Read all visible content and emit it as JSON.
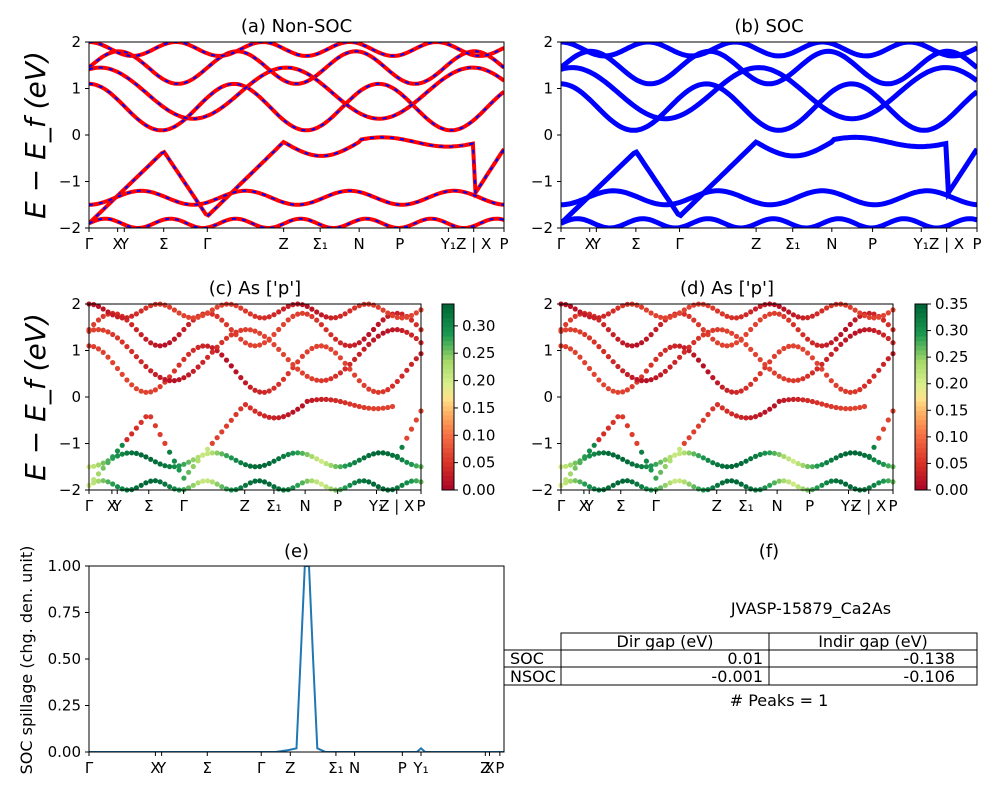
{
  "panels": {
    "a": {
      "title": "(a) Non-SOC"
    },
    "b": {
      "title": "(b) SOC"
    },
    "c": {
      "title": "(c)  As ['p']"
    },
    "d": {
      "title": "(d) As ['p']"
    },
    "e": {
      "title": "(e)"
    },
    "f": {
      "title": "(f)"
    }
  },
  "band_ylabel": "E − E_f (eV)",
  "spillage_ylabel": "SOC spillage (chg. den. unit)",
  "band_yticks": [
    "2",
    "1",
    "0",
    "−1",
    "−2"
  ],
  "band_xticks": [
    "Γ",
    "X",
    "Y",
    "Σ",
    "Γ",
    "Z",
    "Σ₁",
    "N",
    "P",
    "Y₁",
    "Z | X",
    "P"
  ],
  "spill_xticks": [
    "Γ",
    "X",
    "Y",
    "Σ",
    "Γ",
    "Z",
    "Σ₁",
    "N",
    "P",
    "Y₁",
    "Z",
    "X",
    "P"
  ],
  "colorbar_c": {
    "ticks": [
      "0.30",
      "0.25",
      "0.20",
      "0.15",
      "0.10",
      "0.05",
      "0.00"
    ],
    "max": 0.34
  },
  "colorbar_d": {
    "ticks": [
      "0.35",
      "0.30",
      "0.25",
      "0.20",
      "0.15",
      "0.10",
      "0.05",
      "0.00"
    ],
    "max": 0.35
  },
  "colors": {
    "nonsoc_line": "#ff0000",
    "nonsoc_dash": "#0000ff",
    "soc_line": "#0000ff",
    "spillage": "#1f77b4"
  },
  "table": {
    "material": "JVASP-15879_Ca2As",
    "columns": [
      "Dir gap (eV)",
      "Indir gap (eV)"
    ],
    "rows": [
      {
        "label": "SOC",
        "dir": "0.01",
        "indir": "-0.138"
      },
      {
        "label": "NSOC",
        "dir": "-0.001",
        "indir": "-0.106"
      }
    ],
    "peaks": "# Peaks = 1"
  },
  "chart_data": [
    {
      "type": "line",
      "title": "(a) Non-SOC",
      "ylabel": "E − E_f (eV)",
      "ylim": [
        -2,
        2
      ],
      "x_ticks": [
        "Γ",
        "X",
        "Y",
        "Σ",
        "Γ",
        "Z",
        "Σ₁",
        "N",
        "P",
        "Y₁",
        "Z | X",
        "P"
      ],
      "series_note": "electronic band structure, red lines with blue dashes"
    },
    {
      "type": "line",
      "title": "(b) SOC",
      "ylim": [
        -2,
        2
      ],
      "x_ticks": [
        "Γ",
        "X",
        "Y",
        "Σ",
        "Γ",
        "Z",
        "Σ₁",
        "N",
        "P",
        "Y₁",
        "Z | X",
        "P"
      ]
    },
    {
      "type": "scatter",
      "title": "(c)  As ['p']",
      "ylabel": "E − E_f (eV)",
      "ylim": [
        -2,
        2
      ],
      "colorbar_range": [
        0,
        0.34
      ]
    },
    {
      "type": "scatter",
      "title": "(d) As ['p']",
      "ylim": [
        -2,
        2
      ],
      "colorbar_range": [
        0,
        0.35
      ]
    },
    {
      "type": "line",
      "title": "(e)",
      "ylabel": "SOC spillage (chg. den. unit)",
      "ylim": [
        0,
        1
      ],
      "y_ticks": [
        "0.00",
        "0.25",
        "0.50",
        "0.75",
        "1.00"
      ],
      "x": [
        0,
        0.2,
        0.4,
        0.45,
        0.48,
        0.5,
        0.51,
        0.52,
        0.53,
        0.54,
        0.55,
        0.57,
        0.6,
        0.7,
        0.79,
        0.8,
        0.81,
        0.9,
        1.0
      ],
      "y": [
        0.0,
        0.0,
        0.0,
        0.0,
        0.01,
        0.02,
        0.5,
        1.0,
        1.0,
        0.5,
        0.02,
        0.0,
        0.0,
        0.0,
        0.0,
        0.02,
        0.0,
        0.0,
        0.0
      ]
    }
  ]
}
